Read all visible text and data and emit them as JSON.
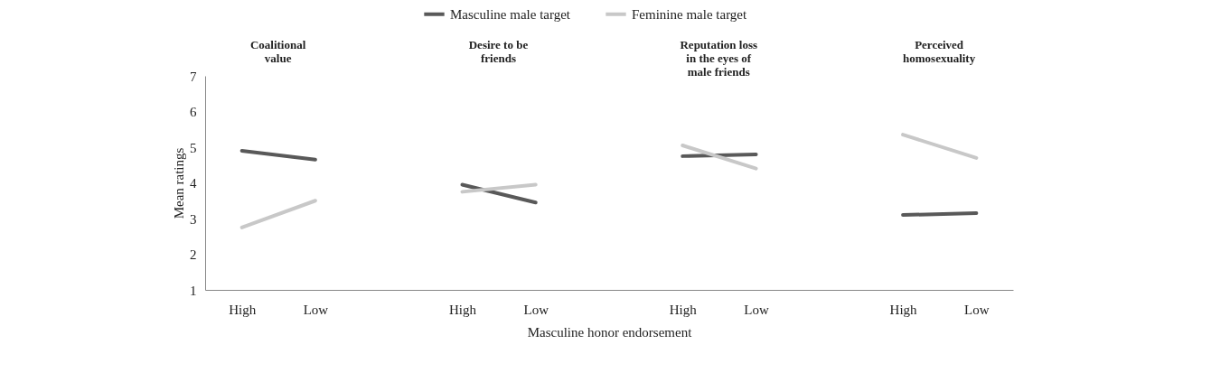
{
  "chart_data": {
    "type": "line",
    "xlabel": "Masculine honor endorsement",
    "ylabel": "Mean ratings",
    "categories": [
      "High",
      "Low",
      null,
      "High",
      "Low",
      null,
      "High",
      "Low",
      null,
      "High",
      "Low"
    ],
    "series": [
      {
        "name": "Masculine male target",
        "color": "#595959",
        "values": [
          4.9,
          4.65,
          null,
          3.95,
          3.45,
          null,
          4.75,
          4.8,
          null,
          3.1,
          3.15
        ]
      },
      {
        "name": "Feminine male target",
        "color": "#c8c8c8",
        "values": [
          2.75,
          3.5,
          null,
          3.75,
          3.95,
          null,
          5.05,
          4.4,
          null,
          5.35,
          4.7
        ]
      }
    ],
    "annotations": [
      "Coalitional value",
      "Desire to be friends",
      "Reputation loss in the eyes of male friends",
      "Perceived homosexuality"
    ],
    "ylim": [
      1,
      7
    ],
    "yticks": [
      1,
      2,
      3,
      4,
      5,
      6,
      7
    ],
    "grid": false,
    "legend": "top",
    "marker": "none",
    "line_style": "solid"
  }
}
